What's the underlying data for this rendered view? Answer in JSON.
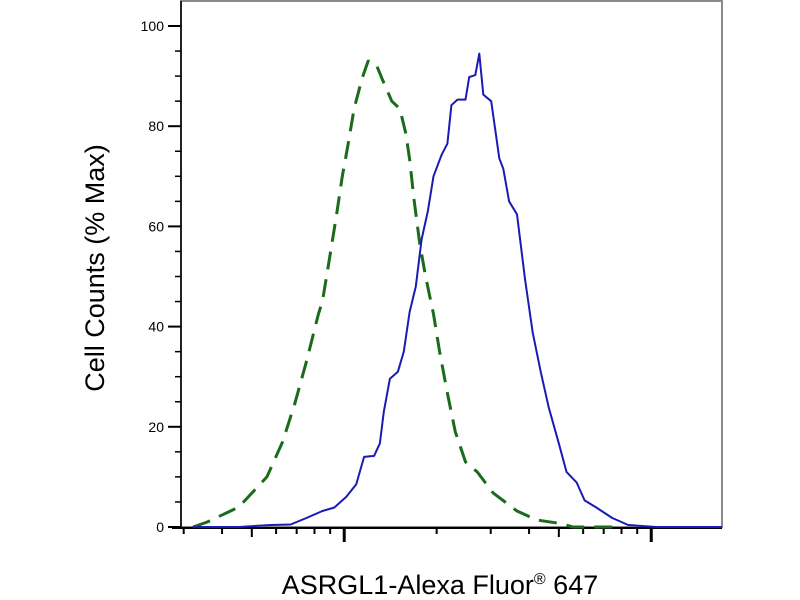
{
  "chart_data": {
    "type": "line",
    "title": "",
    "xlabel": "ASRGL1-Alexa Fluor",
    "xlabel_superscript": "®",
    "xlabel_suffix": " 647",
    "ylabel": "Cell Counts (% Max)",
    "x_scale": "log",
    "x_tick_labels_shown": false,
    "xlim": [
      294,
      17000
    ],
    "ylim": [
      0,
      100
    ],
    "y_ticks": [
      0,
      20,
      40,
      60,
      80,
      100
    ],
    "y_tick_labels": [
      "0",
      "20",
      "40",
      "60",
      "80",
      "100"
    ],
    "y_minor_step": 5,
    "grid": false,
    "legend": "none",
    "series": [
      {
        "color": "#1a6b1a",
        "style": "dashed",
        "x": [
          322,
          358,
          454,
          560,
          630,
          689,
          753,
          824,
          849,
          887,
          942,
          986,
          1030,
          1077,
          1143,
          1196,
          1268,
          1327,
          1429,
          1517,
          1588,
          1636,
          1683,
          1762,
          1841,
          1954,
          2044,
          2168,
          2301,
          2483,
          2710,
          3055,
          3654,
          4240,
          5070,
          5545,
          7690
        ],
        "y": [
          0,
          1,
          4,
          10,
          17,
          24.5,
          33,
          42.5,
          45,
          52,
          62,
          70,
          76.5,
          83.5,
          89.5,
          93,
          92.5,
          89.5,
          85,
          83.5,
          78.5,
          73,
          66,
          56.5,
          50,
          42.5,
          35,
          26.7,
          19,
          13,
          11,
          6.8,
          3.2,
          1.4,
          0.7,
          0,
          0
        ]
      },
      {
        "color": "#1a1ab4",
        "style": "solid",
        "x": [
          321,
          454,
          577,
          669,
          753,
          849,
          929,
          1015,
          1094,
          1161,
          1251,
          1307,
          1346,
          1409,
          1496,
          1563,
          1633,
          1710,
          1787,
          1871,
          1954,
          2075,
          2168,
          2234,
          2339,
          2483,
          2553,
          2673,
          2754,
          2838,
          3012,
          3199,
          3296,
          3444,
          3654,
          3881,
          4111,
          4365,
          4634,
          5000,
          5297,
          5715,
          6067,
          6625,
          7467,
          8415,
          10370,
          17000
        ],
        "y": [
          0,
          0,
          0.4,
          0.5,
          1.8,
          3.2,
          3.9,
          6,
          8.5,
          14,
          14.2,
          16.7,
          23,
          29.6,
          31,
          35,
          42.9,
          48,
          57.4,
          63,
          70,
          74.3,
          76.5,
          84.2,
          85.3,
          85.3,
          89.8,
          90.2,
          94.5,
          86.3,
          85,
          73.6,
          71.5,
          65,
          62.4,
          49.5,
          38.8,
          31,
          23.9,
          16.7,
          11,
          8.9,
          5.3,
          3.9,
          1.8,
          0.4,
          0,
          0
        ]
      }
    ]
  }
}
